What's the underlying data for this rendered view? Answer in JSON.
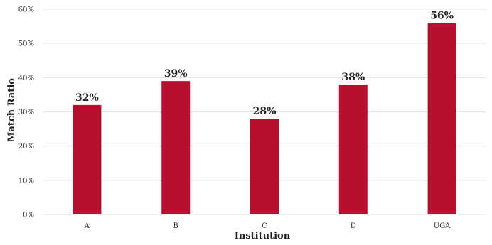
{
  "chart_data": {
    "type": "bar",
    "categories": [
      "A",
      "B",
      "C",
      "D",
      "UGA"
    ],
    "values": [
      32,
      39,
      28,
      38,
      56
    ],
    "data_labels": [
      "32%",
      "39%",
      "28%",
      "38%",
      "56%"
    ],
    "title": "",
    "xlabel": "Institution",
    "ylabel": "Match Ratio",
    "ylim": [
      0,
      60
    ],
    "y_ticks": [
      0,
      10,
      20,
      30,
      40,
      50,
      60
    ],
    "y_tick_labels": [
      "0%",
      "10%",
      "20%",
      "30%",
      "40%",
      "50%",
      "60%"
    ],
    "grid": true,
    "legend": "none",
    "bar_color": "#b5102f",
    "grid_color": "#e3e3e3"
  }
}
